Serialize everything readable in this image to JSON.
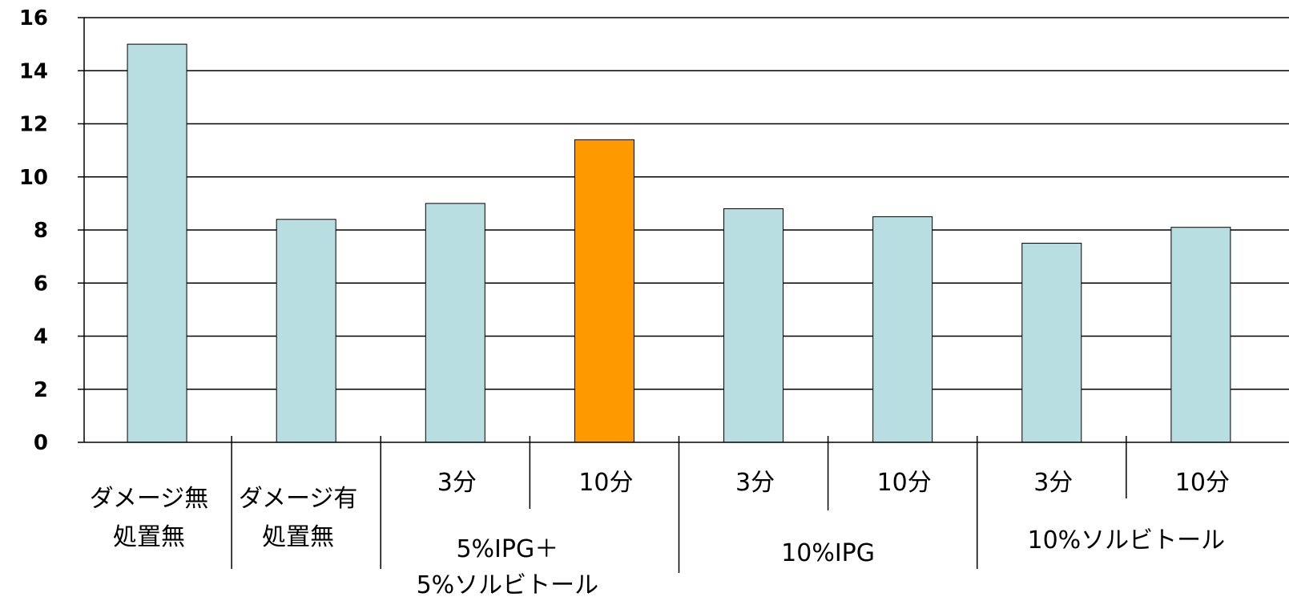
{
  "chart_data": {
    "type": "bar",
    "ylim": [
      0,
      16
    ],
    "yticks": [
      "0",
      "2",
      "4",
      "6",
      "8",
      "10",
      "12",
      "14",
      "16"
    ],
    "grid": true,
    "bars": [
      {
        "value": 15.0,
        "color": "#B8DEE2"
      },
      {
        "value": 8.4,
        "color": "#B8DEE2"
      },
      {
        "value": 9.0,
        "color": "#B8DEE2"
      },
      {
        "value": 11.4,
        "color": "#FF9900"
      },
      {
        "value": 8.8,
        "color": "#B8DEE2"
      },
      {
        "value": 8.5,
        "color": "#B8DEE2"
      },
      {
        "value": 7.5,
        "color": "#B8DEE2"
      },
      {
        "value": 8.1,
        "color": "#B8DEE2"
      }
    ],
    "category_labels": [
      [
        "ダメージ無",
        "処置無"
      ],
      [
        "ダメージ有",
        "処置無"
      ],
      [
        "3分"
      ],
      [
        "10分"
      ],
      [
        "3分"
      ],
      [
        "10分"
      ],
      [
        "3分"
      ],
      [
        "10分"
      ]
    ],
    "group_labels": [
      [
        "5%IPG＋",
        "5%ソルビトール"
      ],
      [
        "10%IPG"
      ],
      [
        "10%ソルビトール"
      ]
    ]
  }
}
